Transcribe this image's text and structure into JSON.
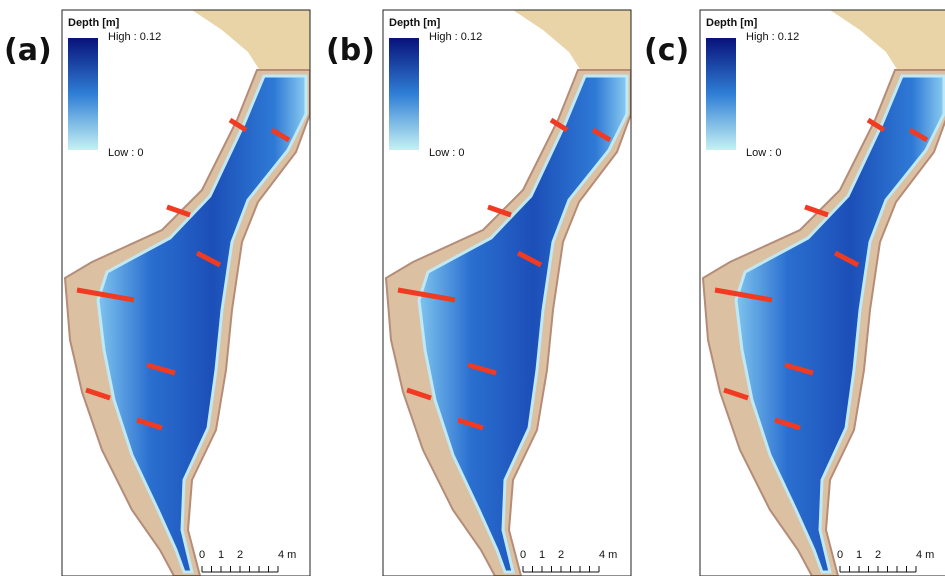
{
  "panels": [
    {
      "label": "(a)",
      "legend": {
        "title": "Depth [m]",
        "high": "High : 0.12",
        "low": "Low : 0"
      },
      "scale_bar": [
        "0",
        "1",
        "2",
        "4 m"
      ]
    },
    {
      "label": "(b)",
      "legend": {
        "title": "Depth [m]",
        "high": "High : 0.12",
        "low": "Low : 0"
      },
      "scale_bar": [
        "0",
        "1",
        "2",
        "4 m"
      ]
    },
    {
      "label": "(c)",
      "legend": {
        "title": "Depth [m]",
        "high": "High : 0.12",
        "low": "Low : 0"
      },
      "scale_bar": [
        "0",
        "1",
        "2",
        "4 m"
      ]
    }
  ]
}
